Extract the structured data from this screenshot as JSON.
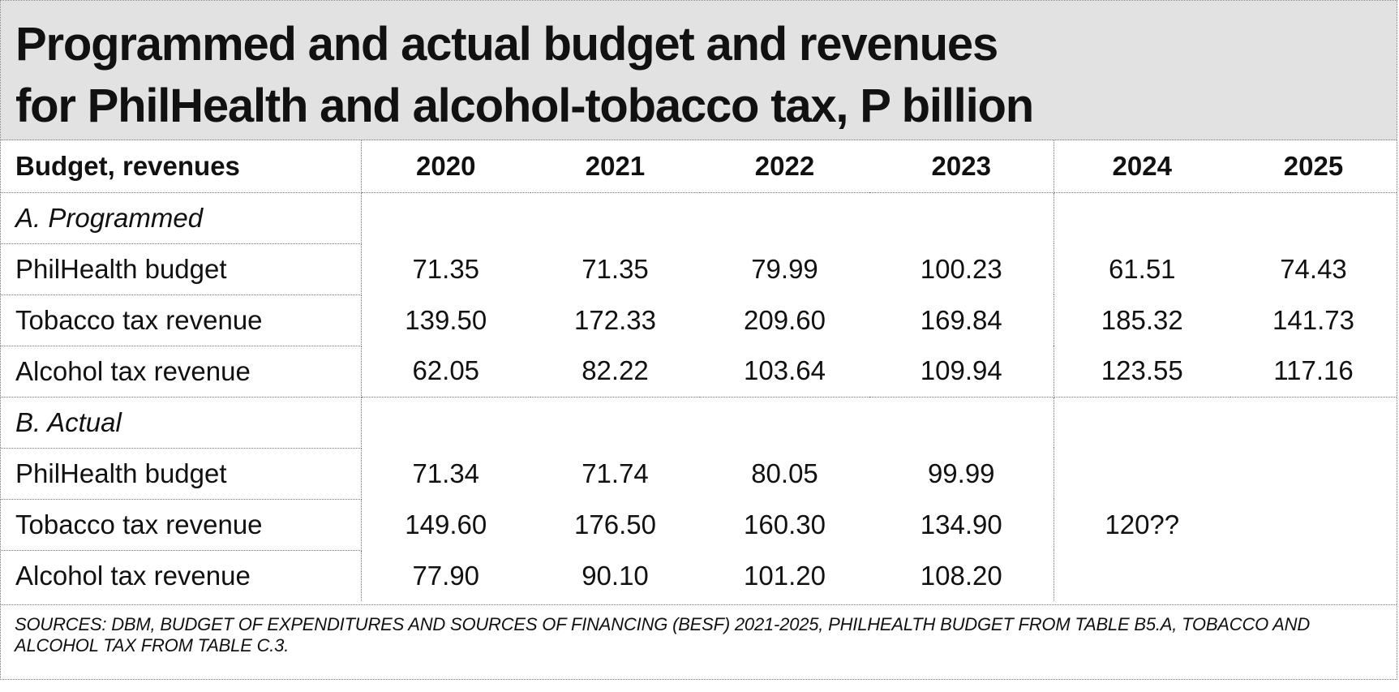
{
  "title": {
    "line1": "Programmed and actual budget and revenues",
    "line2": "for PhilHealth and alcohol-tobacco tax, P billion"
  },
  "table": {
    "header": [
      "Budget, revenues",
      "2020",
      "2021",
      "2022",
      "2023",
      "2024",
      "2025"
    ],
    "sections": [
      {
        "label": "A. Programmed",
        "rows": [
          {
            "label": "PhilHealth budget",
            "values": [
              "71.35",
              "71.35",
              "79.99",
              "100.23",
              "61.51",
              "74.43"
            ]
          },
          {
            "label": "Tobacco tax revenue",
            "values": [
              "139.50",
              "172.33",
              "209.60",
              "169.84",
              "185.32",
              "141.73"
            ]
          },
          {
            "label": "Alcohol tax revenue",
            "values": [
              "62.05",
              "82.22",
              "103.64",
              "109.94",
              "123.55",
              "117.16"
            ]
          }
        ]
      },
      {
        "label": "B. Actual",
        "rows": [
          {
            "label": "PhilHealth budget",
            "values": [
              "71.34",
              "71.74",
              "80.05",
              "99.99",
              "",
              ""
            ]
          },
          {
            "label": "Tobacco tax revenue",
            "values": [
              "149.60",
              "176.50",
              "160.30",
              "134.90",
              "120??",
              ""
            ]
          },
          {
            "label": "Alcohol tax revenue",
            "values": [
              "77.90",
              "90.10",
              "101.20",
              "108.20",
              "",
              ""
            ]
          }
        ]
      }
    ]
  },
  "sources": "SOURCES: DBM, BUDGET OF EXPENDITURES AND SOURCES OF FINANCING (BESF) 2021-2025, PHILHEALTH BUDGET FROM TABLE B5.A, TOBACCO AND ALCOHOL TAX FROM TABLE C.3."
}
